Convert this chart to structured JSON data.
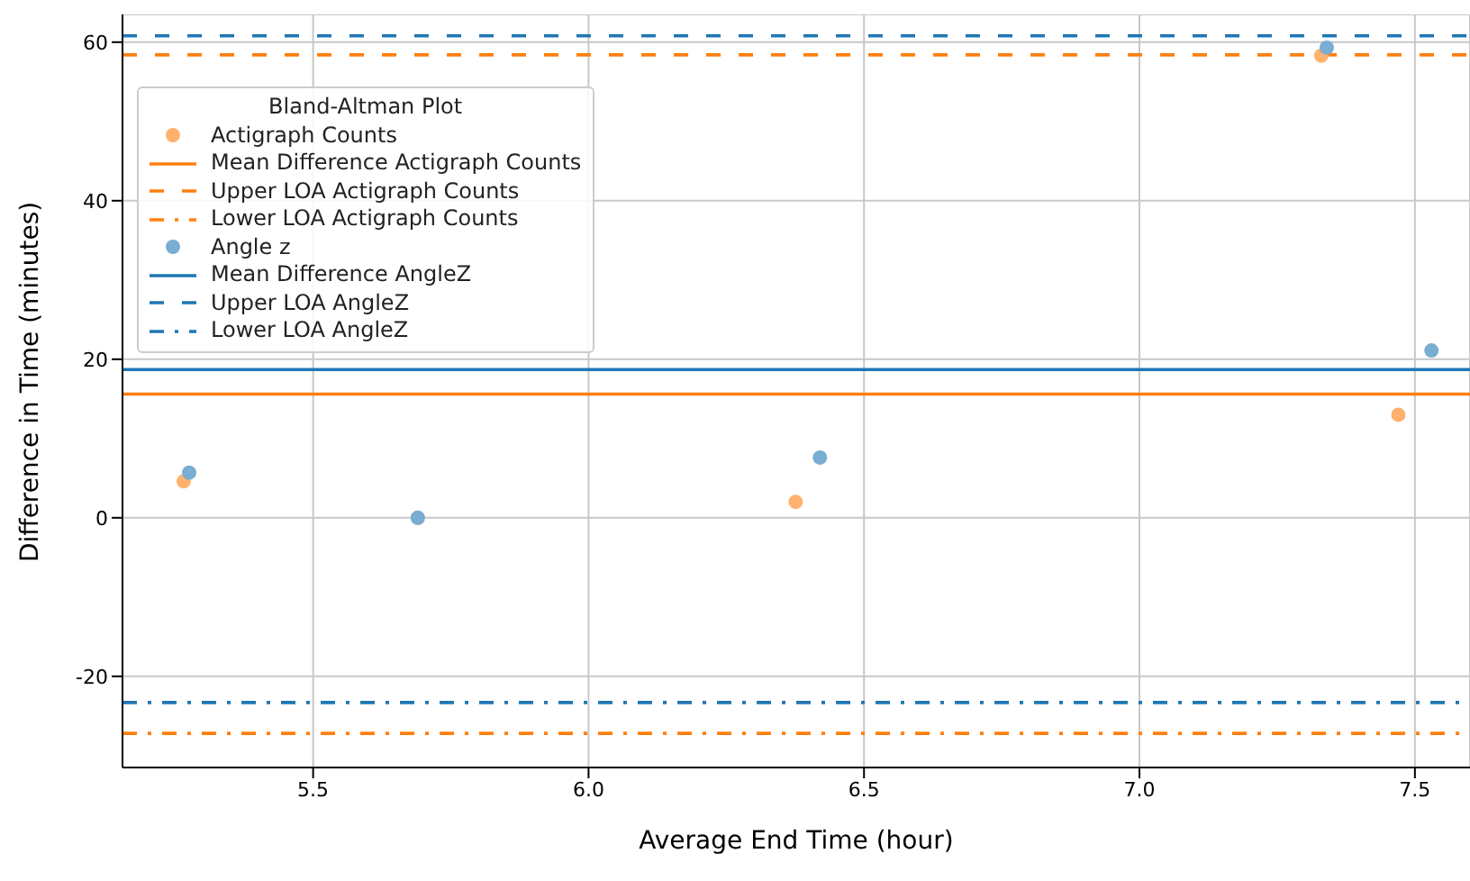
{
  "chart_data": {
    "type": "scatter",
    "legend_title": "Bland-Altman Plot",
    "xlabel": "Average End Time (hour)",
    "ylabel": "Difference in Time (minutes)",
    "xlim": [
      5.154,
      7.6
    ],
    "xticks": [
      {
        "value": 5.5,
        "label": "5.5"
      },
      {
        "value": 6.0,
        "label": "6.0"
      },
      {
        "value": 6.5,
        "label": "6.5"
      },
      {
        "value": 7.0,
        "label": "7.0"
      },
      {
        "value": 7.5,
        "label": "7.5"
      }
    ],
    "ylim": [
      -31.5,
      63.5
    ],
    "yticks": [
      -20,
      0,
      20,
      40,
      60
    ],
    "grid": true,
    "legend": "top left",
    "marker": "circle",
    "series": [
      {
        "name": "Actigraph Counts",
        "color": "#ffb26e",
        "x": [
          5.265,
          5.69,
          6.376,
          7.33,
          7.47
        ],
        "values": [
          4.6,
          0,
          2.0,
          58.3,
          13.0
        ]
      },
      {
        "name": "Angle z",
        "color": "#79add2",
        "x": [
          5.275,
          5.69,
          6.42,
          7.34,
          7.53
        ],
        "values": [
          5.7,
          0,
          7.6,
          59.3,
          21.1
        ]
      }
    ],
    "ref_lines": [
      {
        "axis": "y",
        "value": 15.6,
        "label": "Mean Difference Actigraph Counts",
        "color": "#ff7f0e",
        "line_style": "solid"
      },
      {
        "axis": "y",
        "value": 58.4,
        "label": "Upper LOA Actigraph Counts",
        "color": "#ff7f0e",
        "line_style": "dashed"
      },
      {
        "axis": "y",
        "value": -27.2,
        "label": "Lower LOA Actigraph Counts",
        "color": "#ff7f0e",
        "line_style": "dashdot"
      },
      {
        "axis": "y",
        "value": 18.7,
        "label": "Mean Difference AngleZ",
        "color": "#1f77b4",
        "line_style": "solid"
      },
      {
        "axis": "y",
        "value": 60.8,
        "label": "Upper LOA AngleZ",
        "color": "#1f77b4",
        "line_style": "dashed"
      },
      {
        "axis": "y",
        "value": -23.3,
        "label": "Lower LOA AngleZ",
        "color": "#1f77b4",
        "line_style": "dashdot"
      }
    ]
  }
}
